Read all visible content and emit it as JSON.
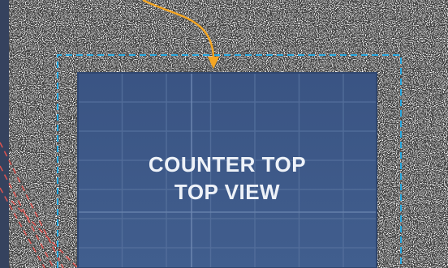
{
  "panel": {
    "line1": "COUNTER TOP",
    "line2": "TOP VIEW"
  },
  "colors": {
    "background": "#35425e",
    "speckled_frame": "#ffffff",
    "inner_panel": "#3f5b8c",
    "dashed_outline": "#27a9e1",
    "arrow": "#f5a623",
    "red_dashed_line": "#d9534f"
  }
}
